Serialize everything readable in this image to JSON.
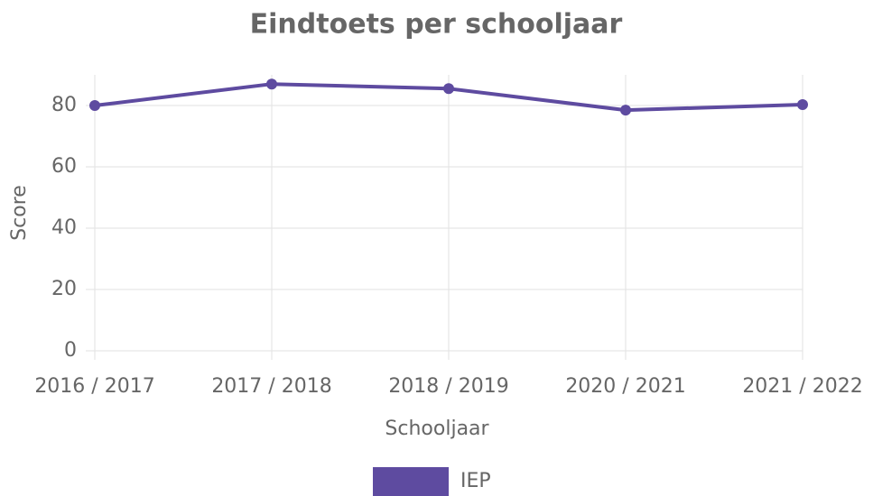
{
  "chart_data": {
    "type": "line",
    "title": "Eindtoets per schooljaar",
    "x_label": "Schooljaar",
    "y_label": "Score",
    "categories": [
      "2016 / 2017",
      "2017 / 2018",
      "2018 / 2019",
      "2020 / 2021",
      "2021 / 2022"
    ],
    "series": [
      {
        "name": "IEP",
        "color": "#5e4ba0",
        "values": [
          80,
          87,
          85.5,
          78.5,
          80.3
        ]
      }
    ],
    "ylim": [
      0,
      90
    ],
    "yticks": [
      0,
      20,
      40,
      60,
      80
    ],
    "grid": true,
    "legend": "bottom"
  }
}
